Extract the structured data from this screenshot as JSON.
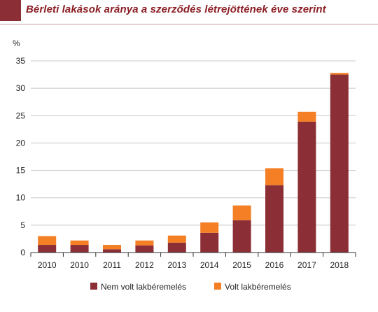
{
  "title": "Bérleti lakások aránya a szerződés létrejöttének éve szerint",
  "colors": {
    "accent": "#8b2e35",
    "series_no_increase": "#8b2e35",
    "series_increase": "#f47f24",
    "gridline": "#c8c8c8",
    "axis": "#333333",
    "title_rule": "#c9a0a3"
  },
  "chart_data": {
    "type": "bar",
    "stacked": true,
    "title": "Bérleti lakások aránya a szerződés létrejöttének éve szerint",
    "ylabel": "%",
    "xlabel": "",
    "ylim": [
      0,
      35
    ],
    "yticks": [
      0,
      5,
      10,
      15,
      20,
      25,
      30,
      35
    ],
    "grid": "horizontal",
    "legend_position": "bottom",
    "categories": [
      "2010",
      "2010",
      "2011",
      "2012",
      "2013",
      "2014",
      "2015",
      "2016",
      "2017",
      "2018"
    ],
    "series": [
      {
        "name": "Nem volt lakbéremelés",
        "values": [
          1.4,
          1.4,
          0.6,
          1.3,
          1.8,
          3.6,
          5.9,
          12.3,
          23.9,
          32.5
        ],
        "color": "#8b2e35"
      },
      {
        "name": "Volt lakbéremelés",
        "values": [
          1.6,
          0.8,
          0.8,
          0.9,
          1.3,
          1.9,
          2.7,
          3.1,
          1.8,
          0.3
        ],
        "color": "#f47f24"
      }
    ]
  }
}
